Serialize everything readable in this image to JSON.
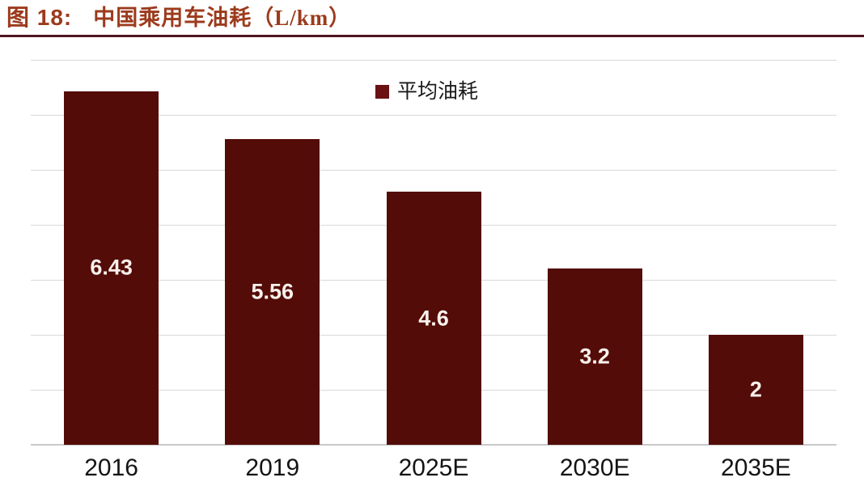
{
  "figure": {
    "label": "图 18:",
    "title": "中国乘用车油耗（L/km）"
  },
  "legend": {
    "items": [
      {
        "label": "平均油耗",
        "swatch_color": "#6a1113"
      }
    ]
  },
  "chart_data": {
    "type": "bar",
    "title": "中国乘用车油耗（L/km）",
    "categories": [
      "2016",
      "2019",
      "2025E",
      "2030E",
      "2035E"
    ],
    "series": [
      {
        "name": "平均油耗",
        "values": [
          6.43,
          5.56,
          4.6,
          3.2,
          2
        ]
      }
    ],
    "value_labels": [
      "6.43",
      "5.56",
      "4.6",
      "3.2",
      "2"
    ],
    "xlabel": "",
    "ylabel": "",
    "ylim": [
      0,
      7
    ],
    "y_gridline_step": 1,
    "grid": true,
    "y_axis_tick_labels_visible": false,
    "legend_position": "top-center",
    "bar_color": "#530c08",
    "value_label_position": "center"
  },
  "colors": {
    "title_text": "#9c3b1d",
    "title_rule": "#4f1520",
    "bar": "#530c08",
    "gridline": "#d9d9d9",
    "axis_line": "#c9c9c9",
    "value_label": "#faf1ec",
    "tick_label": "#141414",
    "background": "#ffffff"
  }
}
